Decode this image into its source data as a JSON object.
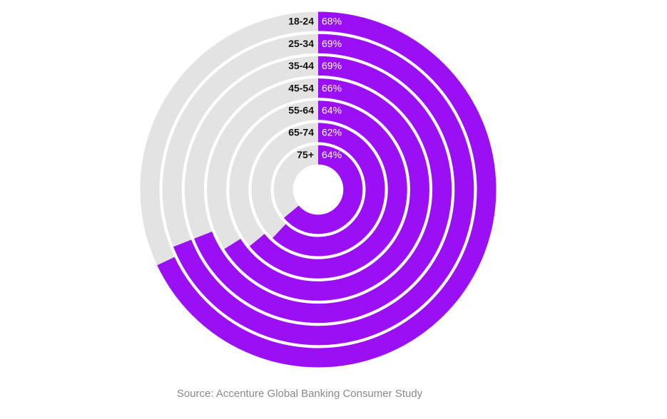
{
  "chart_data": {
    "type": "radial_bar",
    "categories": [
      "18-24",
      "25-34",
      "35-44",
      "45-54",
      "55-64",
      "65-74",
      "75+"
    ],
    "values": [
      68,
      69,
      69,
      66,
      64,
      62,
      64
    ],
    "value_labels": [
      "68%",
      "69%",
      "69%",
      "66%",
      "64%",
      "62%",
      "64%"
    ],
    "color": "#9b0ff5",
    "track_color": "#e3e3e3",
    "ylim": [
      0,
      100
    ],
    "source": "Source: Accenture Global Banking Consumer Study"
  }
}
